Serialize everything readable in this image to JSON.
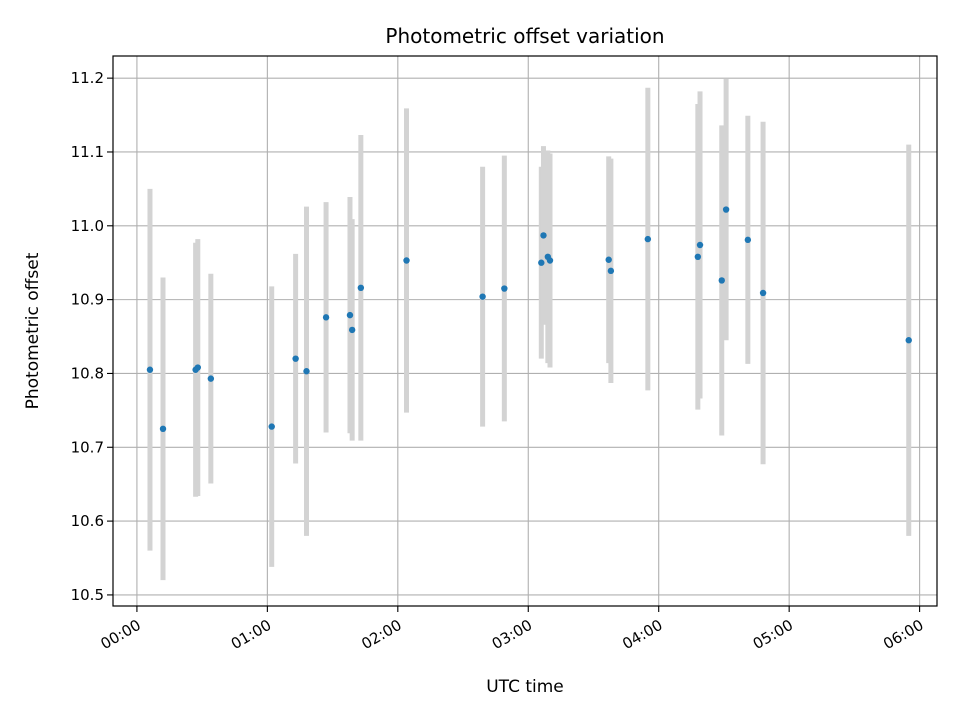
{
  "chart_data": {
    "type": "scatter",
    "title": "Photometric offset variation",
    "xlabel": "UTC time",
    "ylabel": "Photometric offset",
    "x_ticks": [
      "00:00",
      "01:00",
      "02:00",
      "03:00",
      "04:00",
      "05:00",
      "06:00"
    ],
    "y_ticks": [
      "10.5",
      "10.6",
      "10.7",
      "10.8",
      "10.9",
      "11.0",
      "11.1",
      "11.2"
    ],
    "grid": true,
    "marker_color": "#1f77b4",
    "errorbar_color": "#d3d3d3",
    "xlim": [
      "23:49",
      "06:08"
    ],
    "ylim": [
      10.485,
      11.23
    ],
    "series": [
      {
        "points": [
          {
            "time": "00:06",
            "y": 10.805,
            "ylo": 10.56,
            "yhi": 11.05
          },
          {
            "time": "00:12",
            "y": 10.725,
            "ylo": 10.52,
            "yhi": 10.93
          },
          {
            "time": "00:27",
            "y": 10.805,
            "ylo": 10.633,
            "yhi": 10.977
          },
          {
            "time": "00:28",
            "y": 10.808,
            "ylo": 10.634,
            "yhi": 10.982
          },
          {
            "time": "00:34",
            "y": 10.793,
            "ylo": 10.651,
            "yhi": 10.935
          },
          {
            "time": "01:02",
            "y": 10.728,
            "ylo": 10.538,
            "yhi": 10.918
          },
          {
            "time": "01:13",
            "y": 10.82,
            "ylo": 10.678,
            "yhi": 10.962
          },
          {
            "time": "01:18",
            "y": 10.803,
            "ylo": 10.58,
            "yhi": 11.026
          },
          {
            "time": "01:27",
            "y": 10.876,
            "ylo": 10.72,
            "yhi": 11.032
          },
          {
            "time": "01:38",
            "y": 10.879,
            "ylo": 10.719,
            "yhi": 11.039
          },
          {
            "time": "01:39",
            "y": 10.859,
            "ylo": 10.709,
            "yhi": 11.009
          },
          {
            "time": "01:43",
            "y": 10.916,
            "ylo": 10.709,
            "yhi": 11.123
          },
          {
            "time": "02:04",
            "y": 10.953,
            "ylo": 10.747,
            "yhi": 11.159
          },
          {
            "time": "02:39",
            "y": 10.904,
            "ylo": 10.728,
            "yhi": 11.08
          },
          {
            "time": "02:49",
            "y": 10.915,
            "ylo": 10.735,
            "yhi": 11.095
          },
          {
            "time": "03:06",
            "y": 10.95,
            "ylo": 10.82,
            "yhi": 11.08
          },
          {
            "time": "03:07",
            "y": 10.987,
            "ylo": 10.866,
            "yhi": 11.108
          },
          {
            "time": "03:09",
            "y": 10.958,
            "ylo": 10.814,
            "yhi": 11.102
          },
          {
            "time": "03:10",
            "y": 10.953,
            "ylo": 10.808,
            "yhi": 11.098
          },
          {
            "time": "03:37",
            "y": 10.954,
            "ylo": 10.814,
            "yhi": 11.094
          },
          {
            "time": "03:38",
            "y": 10.939,
            "ylo": 10.787,
            "yhi": 11.091
          },
          {
            "time": "03:55",
            "y": 10.982,
            "ylo": 10.777,
            "yhi": 11.187
          },
          {
            "time": "04:18",
            "y": 10.958,
            "ylo": 10.751,
            "yhi": 11.165
          },
          {
            "time": "04:19",
            "y": 10.974,
            "ylo": 10.766,
            "yhi": 11.182
          },
          {
            "time": "04:29",
            "y": 10.926,
            "ylo": 10.716,
            "yhi": 11.136
          },
          {
            "time": "04:31",
            "y": 11.022,
            "ylo": 10.845,
            "yhi": 11.199
          },
          {
            "time": "04:41",
            "y": 10.981,
            "ylo": 10.813,
            "yhi": 11.149
          },
          {
            "time": "04:48",
            "y": 10.909,
            "ylo": 10.677,
            "yhi": 11.141
          },
          {
            "time": "05:55",
            "y": 10.845,
            "ylo": 10.58,
            "yhi": 11.11
          }
        ]
      }
    ]
  }
}
